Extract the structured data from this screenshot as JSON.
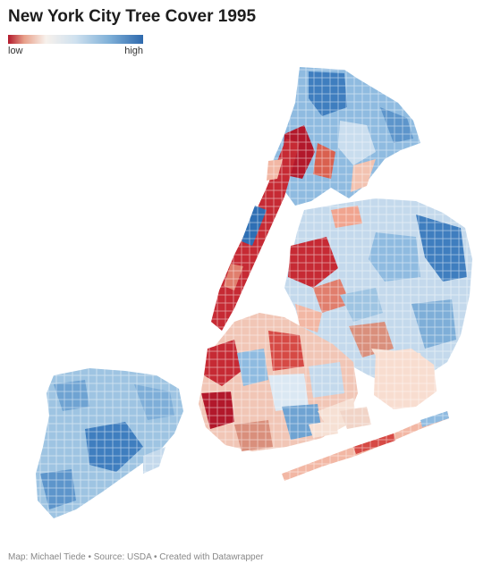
{
  "title": "New York City Tree Cover 1995",
  "legend": {
    "low_label": "low",
    "high_label": "high"
  },
  "colors": {
    "very_low": "#b2182b",
    "low": "#e8a08a",
    "mid_low": "#f7e3da",
    "mid": "#dbe8f3",
    "mid_high": "#9ec4e2",
    "high": "#2e69ad"
  },
  "footer": "Map: Michael Tiede • Source: USDA • Created with Datawrapper"
}
